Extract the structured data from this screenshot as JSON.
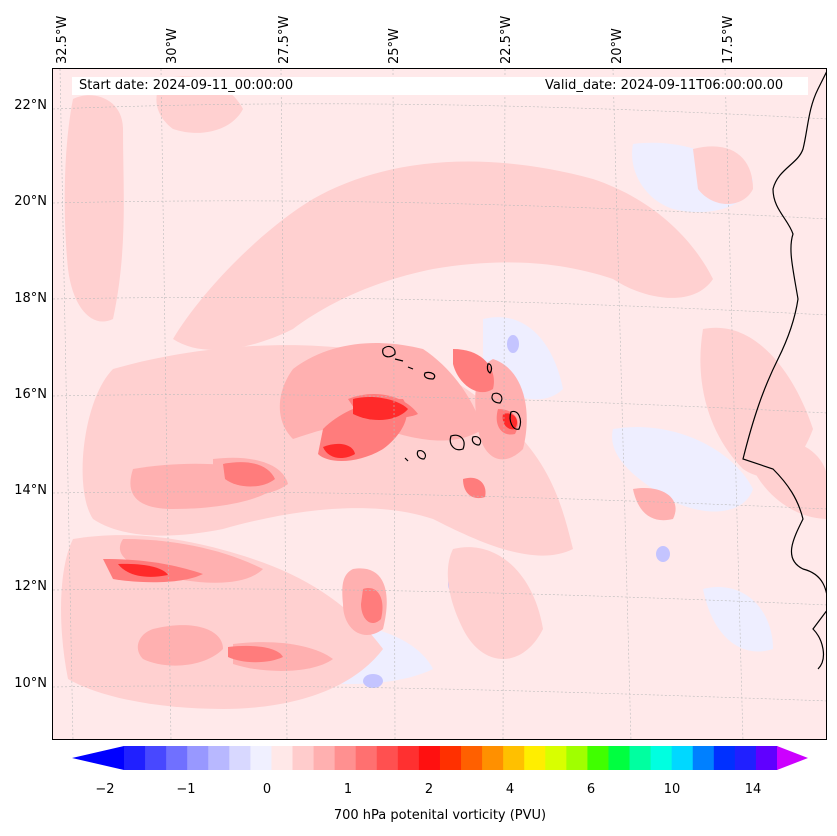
{
  "map": {
    "start_date": "Start date: 2024-09-11_00:00:00",
    "valid_date": "Valid_date: 2024-09-11T06:00:00.00",
    "longitude_labels": [
      "32.5°W",
      "30°W",
      "27.5°W",
      "25°W",
      "22.5°W",
      "20°W",
      "17.5°W"
    ],
    "latitude_labels": [
      "22°N",
      "20°N",
      "18°N",
      "16°N",
      "14°N",
      "12°N",
      "10°N"
    ],
    "variable": "700 hPa potenital vorticity (PVU)",
    "region": "Eastern tropical Atlantic, Cabo Verde islands and West African coast"
  },
  "colorbar": {
    "label": "700 hPa potenital vorticity (PVU)",
    "tick_labels": [
      "−2",
      "−1",
      "0",
      "1",
      "2",
      "4",
      "6",
      "10",
      "14"
    ],
    "extend": "both",
    "under_color": "#0000ff",
    "over_color": "#cc00ff",
    "colors": [
      "#2020ff",
      "#4848ff",
      "#7070ff",
      "#9898ff",
      "#b8b8ff",
      "#d8d8ff",
      "#f0f0ff",
      "#ffe8e8",
      "#ffcccc",
      "#ffb0b0",
      "#ff9090",
      "#ff7070",
      "#ff5050",
      "#ff3030",
      "#ff1010",
      "#ff3000",
      "#ff6000",
      "#ff9000",
      "#ffc000",
      "#ffee00",
      "#d8ff00",
      "#a0ff00",
      "#40ff00",
      "#00ff40",
      "#00ffa0",
      "#00ffe0",
      "#00d8ff",
      "#0080ff",
      "#0030ff",
      "#2020ff",
      "#6000ff"
    ]
  }
}
